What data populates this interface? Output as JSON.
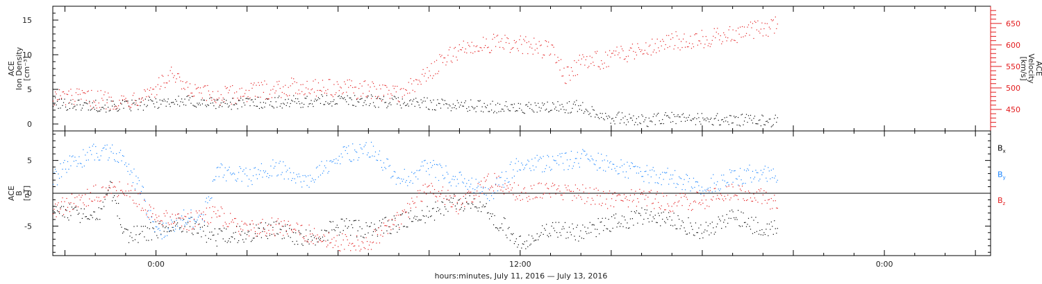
{
  "colors": {
    "axis": "#000000",
    "black_series": "#000000",
    "red": "#e31a1c",
    "blue": "#1a85ff"
  },
  "footer_label": "hours:minutes, July 11, 2016 — July 13, 2016",
  "chart_data": [
    {
      "type": "scatter",
      "panel": "top",
      "ylabel_left": [
        "ACE",
        "Ion Density",
        "[cm⁻³]"
      ],
      "ylabel_right": [
        "ACE",
        "Velocity",
        "[km/s]"
      ],
      "x_unit": "hours since July 11 00:00",
      "xlim": [
        -3.4,
        27.5
      ],
      "ylim_left": [
        -1,
        17
      ],
      "ylim_right": [
        400,
        690
      ],
      "y_ticks_left": [
        "0",
        "5",
        "10",
        "15"
      ],
      "y_ticks_right": [
        "450",
        "500",
        "550",
        "600",
        "650"
      ],
      "x_ticks": [
        {
          "x": 0,
          "label": "0:00"
        },
        {
          "x": 12,
          "label": "12:00"
        },
        {
          "x": 24,
          "label": "0:00"
        }
      ],
      "grid": false,
      "series": [
        {
          "color": "black",
          "axis": "left",
          "x": [
            -3.4,
            -2,
            -1,
            0,
            1,
            2,
            3,
            4,
            5,
            6,
            7,
            8,
            9,
            10,
            11,
            12,
            13,
            14,
            14.5,
            15,
            16,
            17,
            18,
            19,
            20,
            20.5
          ],
          "y": [
            3.0,
            2.7,
            2.6,
            3.2,
            3.3,
            3.0,
            3.1,
            3.2,
            3.3,
            3.5,
            3.4,
            3.2,
            3.0,
            2.7,
            2.6,
            2.3,
            2.4,
            2.6,
            1.6,
            1.0,
            0.5,
            0.9,
            0.8,
            0.6,
            0.5,
            0.6
          ]
        },
        {
          "color": "red",
          "axis": "right",
          "x": [
            -3.4,
            -2,
            -1,
            0,
            0.5,
            1,
            2,
            3,
            4,
            5,
            6,
            7,
            8,
            8.5,
            9,
            10,
            11,
            12,
            13,
            13.5,
            14,
            15,
            16,
            17,
            18,
            19,
            20,
            20.5
          ],
          "y": [
            480,
            475,
            470,
            500,
            530,
            495,
            480,
            490,
            500,
            505,
            500,
            495,
            490,
            505,
            540,
            590,
            605,
            600,
            590,
            530,
            560,
            570,
            595,
            610,
            615,
            625,
            640,
            645
          ]
        }
      ]
    },
    {
      "type": "scatter",
      "panel": "bottom",
      "ylabel_left": [
        "ACE",
        "B",
        "[nT]"
      ],
      "xlim": [
        -3.4,
        27.5
      ],
      "ylim": [
        -9.5,
        9.5
      ],
      "y_ticks": [
        "-5",
        "0",
        "5"
      ],
      "zero_line": true,
      "x_ticks": [
        {
          "x": 0,
          "label": "0:00"
        },
        {
          "x": 12,
          "label": "12:00"
        },
        {
          "x": 24,
          "label": "0:00"
        }
      ],
      "legend": [
        "Bx",
        "By",
        "Bz"
      ],
      "legend_position": "right",
      "series": [
        {
          "name": "Bx",
          "color": "black",
          "x": [
            -3.4,
            -2,
            -1.5,
            -1,
            0,
            1,
            2,
            3,
            4,
            5,
            6,
            7,
            8,
            9,
            10,
            11,
            12,
            13,
            14,
            15,
            16,
            17,
            18,
            19,
            20,
            20.5
          ],
          "y": [
            -2.0,
            -4.0,
            1.0,
            -6.5,
            -5.5,
            -4.5,
            -6.8,
            -6.0,
            -5.5,
            -7.0,
            -5.0,
            -5.5,
            -4.5,
            -3.0,
            -1.0,
            -3.0,
            -7.5,
            -5.5,
            -6.0,
            -4.5,
            -3.5,
            -4.0,
            -6.0,
            -3.5,
            -5.5,
            -5.5
          ]
        },
        {
          "name": "By",
          "color": "blue",
          "x": [
            -3.4,
            -3,
            -2,
            -1.2,
            -0.5,
            0,
            1,
            1.5,
            2,
            3,
            4,
            5,
            6,
            7,
            8,
            9,
            10,
            11,
            12,
            13,
            14,
            15,
            16,
            17,
            18,
            19,
            20,
            20.5
          ],
          "y": [
            2.0,
            4.0,
            6.5,
            6.0,
            0.5,
            -6.0,
            -3.5,
            -4.5,
            3.5,
            2.5,
            4.0,
            2.0,
            5.5,
            7.0,
            2.0,
            4.0,
            2.0,
            0.0,
            5.0,
            4.5,
            5.5,
            4.5,
            3.0,
            2.5,
            1.0,
            2.5,
            3.5,
            2.0
          ]
        },
        {
          "name": "Bz",
          "color": "red",
          "x": [
            -3.4,
            -2,
            -1,
            0,
            1,
            2,
            3,
            4,
            5,
            6,
            7,
            8,
            9,
            10,
            11,
            12,
            13,
            14,
            15,
            16,
            17,
            18,
            19,
            20,
            20.5
          ],
          "y": [
            -2.5,
            0.0,
            1.0,
            -3.5,
            -4.5,
            -3.0,
            -5.5,
            -5.0,
            -6.0,
            -7.5,
            -7.5,
            -4.0,
            1.0,
            -2.0,
            2.0,
            0.0,
            0.5,
            0.0,
            -1.0,
            -0.5,
            -1.5,
            -1.0,
            0.5,
            -0.5,
            -2.0
          ]
        }
      ]
    }
  ]
}
